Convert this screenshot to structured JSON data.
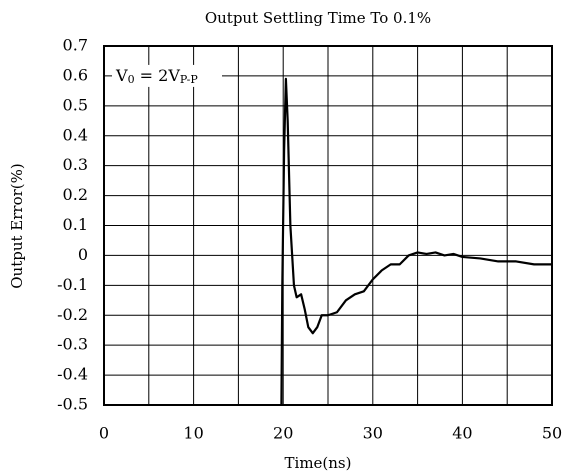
{
  "chart_data": {
    "type": "line",
    "title": "Output Settling Time To 0.1%",
    "x_label": "Time(ns)",
    "y_label": "Output Error(%)",
    "annotation": [
      "V",
      "0",
      " = 2V",
      "P-P"
    ],
    "x": [
      19.8,
      19.9,
      20.1,
      20.3,
      20.5,
      20.8,
      21.2,
      21.5,
      22.0,
      22.4,
      22.8,
      23.3,
      23.8,
      24.3,
      25.0,
      26.0,
      27.0,
      28.0,
      29.0,
      30.0,
      31.0,
      32.0,
      33.0,
      34.0,
      35.0,
      36.0,
      37.0,
      38.0,
      39.0,
      40.0,
      42.0,
      44.0,
      46.0,
      48.0,
      50.0
    ],
    "series": [
      {
        "name": "Output Error",
        "color": "#000000",
        "values": [
          -0.5,
          -0.1,
          0.35,
          0.59,
          0.45,
          0.1,
          -0.1,
          -0.14,
          -0.13,
          -0.18,
          -0.24,
          -0.26,
          -0.24,
          -0.2,
          -0.2,
          -0.19,
          -0.15,
          -0.13,
          -0.12,
          -0.08,
          -0.05,
          -0.03,
          -0.03,
          0.0,
          0.01,
          0.005,
          0.01,
          0.0,
          0.005,
          -0.005,
          -0.01,
          -0.02,
          -0.02,
          -0.03,
          -0.03
        ]
      }
    ],
    "xlim": [
      0,
      50
    ],
    "ylim": [
      -0.5,
      0.7
    ],
    "xticks": [
      0,
      10,
      20,
      30,
      40,
      50
    ],
    "x_minor_grid": [
      5,
      15,
      25,
      35,
      45
    ],
    "yticks": [
      -0.5,
      -0.4,
      -0.3,
      -0.2,
      -0.1,
      0,
      0.1,
      0.2,
      0.3,
      0.4,
      0.5,
      0.6,
      0.7
    ],
    "grid": true
  }
}
